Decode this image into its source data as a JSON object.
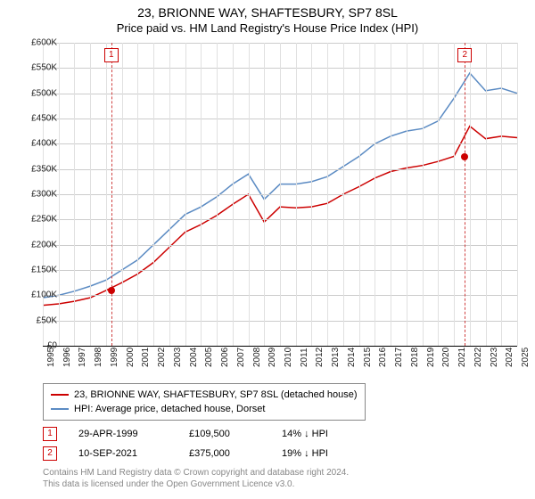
{
  "title": "23, BRIONNE WAY, SHAFTESBURY, SP7 8SL",
  "subtitle": "Price paid vs. HM Land Registry's House Price Index (HPI)",
  "chart": {
    "type": "line",
    "background_color": "#ffffff",
    "grid_color": "#cccccc",
    "x_axis": {
      "years": [
        1995,
        1996,
        1997,
        1998,
        1999,
        2000,
        2001,
        2002,
        2003,
        2004,
        2005,
        2006,
        2007,
        2008,
        2009,
        2010,
        2011,
        2012,
        2013,
        2014,
        2015,
        2016,
        2017,
        2018,
        2019,
        2020,
        2021,
        2022,
        2023,
        2024,
        2025
      ]
    },
    "y_axis": {
      "min": 0,
      "max": 600000,
      "step": 50000,
      "labels": [
        "£0",
        "£50K",
        "£100K",
        "£150K",
        "£200K",
        "£250K",
        "£300K",
        "£350K",
        "£400K",
        "£450K",
        "£500K",
        "£550K",
        "£600K"
      ]
    },
    "series": [
      {
        "key": "hpi",
        "label": "HPI: Average price, detached house, Dorset",
        "color": "#5b8bc3",
        "line_width": 1.5,
        "data_yearly": [
          95000,
          100000,
          108000,
          118000,
          130000,
          150000,
          170000,
          200000,
          230000,
          260000,
          275000,
          295000,
          320000,
          340000,
          290000,
          320000,
          320000,
          325000,
          335000,
          355000,
          375000,
          400000,
          415000,
          425000,
          430000,
          445000,
          490000,
          540000,
          505000,
          510000,
          500000
        ]
      },
      {
        "key": "price_paid",
        "label": "23, BRIONNE WAY, SHAFTESBURY, SP7 8SL (detached house)",
        "color": "#cc0000",
        "line_width": 1.5,
        "data_yearly": [
          80000,
          83000,
          88000,
          95000,
          109500,
          125000,
          142000,
          165000,
          195000,
          225000,
          240000,
          258000,
          280000,
          300000,
          245000,
          275000,
          273000,
          275000,
          282000,
          300000,
          315000,
          332000,
          345000,
          352000,
          357000,
          365000,
          375000,
          435000,
          410000,
          415000,
          412000
        ]
      }
    ],
    "reference_points": [
      {
        "n": "1",
        "year": 1999.33,
        "date": "29-APR-1999",
        "price": "£109,500",
        "delta": "14% ↓ HPI",
        "dot_color": "#cc0000",
        "dot_y": 109500
      },
      {
        "n": "2",
        "year": 2021.69,
        "date": "10-SEP-2021",
        "price": "£375,000",
        "delta": "19% ↓ HPI",
        "dot_color": "#cc0000",
        "dot_y": 375000
      }
    ]
  },
  "footnote_line1": "Contains HM Land Registry data © Crown copyright and database right 2024.",
  "footnote_line2": "This data is licensed under the Open Government Licence v3.0."
}
